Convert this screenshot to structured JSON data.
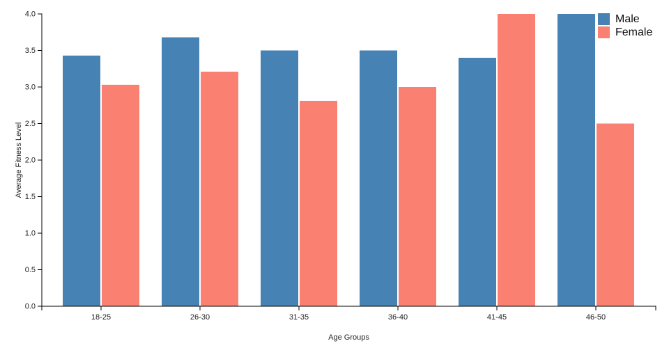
{
  "chart_data": {
    "type": "bar",
    "title": "",
    "categories": [
      "18-25",
      "26-30",
      "31-35",
      "36-40",
      "41-45",
      "46-50"
    ],
    "series": [
      {
        "name": "Male",
        "color": "#4682B4",
        "values": [
          3.43,
          3.68,
          3.5,
          3.5,
          3.4,
          4.0
        ]
      },
      {
        "name": "Female",
        "color": "#FA8072",
        "values": [
          3.03,
          3.21,
          2.81,
          3.0,
          4.0,
          2.5
        ]
      }
    ],
    "xlabel": "Age Groups",
    "ylabel": "Average Fitness Level",
    "ylim": [
      0,
      4
    ],
    "yticks": [
      "0.0",
      "0.5",
      "1.0",
      "1.5",
      "2.0",
      "2.5",
      "3.0",
      "3.5",
      "4.0"
    ],
    "legend_position": "top-right",
    "grid": false,
    "axis_color": "#000000",
    "tick_text_color": "#222222",
    "background_color": "#ffffff"
  }
}
